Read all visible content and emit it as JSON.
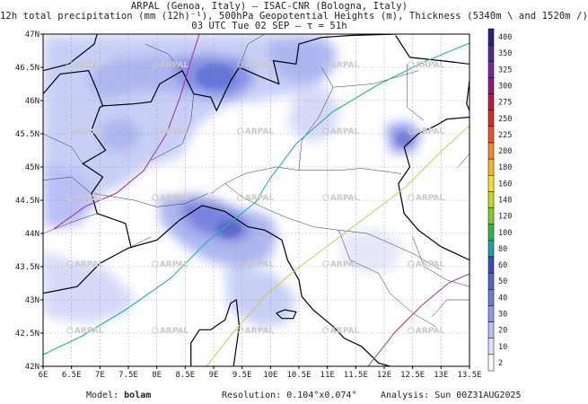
{
  "header": {
    "line1": "ARPAL (Genoa, Italy)  —  ISAC-CNR (Bologna, Italy)",
    "line2": "12h total precipitation (mm (12h)⁻¹), 500hPa Geopotential Heights (m), Thickness (5340m \\ and 1520m /)",
    "line3": "03 UTC Tue 02 SEP  —  τ = 51h"
  },
  "map": {
    "lon_range": [
      6.0,
      13.5
    ],
    "lat_range": [
      42.0,
      47.0
    ],
    "x_ticks": [
      "6E",
      "6.5E",
      "7E",
      "7.5E",
      "8E",
      "8.5E",
      "9E",
      "9.5E",
      "10E",
      "10.5E",
      "11E",
      "11.5E",
      "12E",
      "12.5E",
      "13E",
      "13.5E"
    ],
    "y_ticks": [
      "42N",
      "42.5N",
      "43N",
      "43.5N",
      "44N",
      "44.5N",
      "45N",
      "45.5N",
      "46N",
      "46.5N",
      "47N"
    ],
    "watermark": "ARPAL",
    "grid": "dotted"
  },
  "colorbar": {
    "levels": [
      "2",
      "10",
      "20",
      "30",
      "40",
      "50",
      "60",
      "80",
      "100",
      "120",
      "140",
      "160",
      "180",
      "200",
      "225",
      "250",
      "275",
      "300",
      "325",
      "350",
      "400"
    ],
    "colors": [
      "#ffffff",
      "#dcdfff",
      "#b7bdf5",
      "#8f98e8",
      "#6e79d8",
      "#5563c9",
      "#3b4bb5",
      "#1fa0a0",
      "#2bb44a",
      "#7ccd32",
      "#c8d62a",
      "#f2e02a",
      "#f7b52a",
      "#f08a2a",
      "#e9542a",
      "#d62a2a",
      "#b71c3c",
      "#8e1c7c",
      "#6f2a9e",
      "#4d2a9c",
      "#31207a"
    ]
  },
  "footer": {
    "model_label": "Model:",
    "model_value": "bolam",
    "resolution": "Resolution: 0.104°x0.074°",
    "analysis": "Analysis: Sun 00Z31AUG2025"
  }
}
